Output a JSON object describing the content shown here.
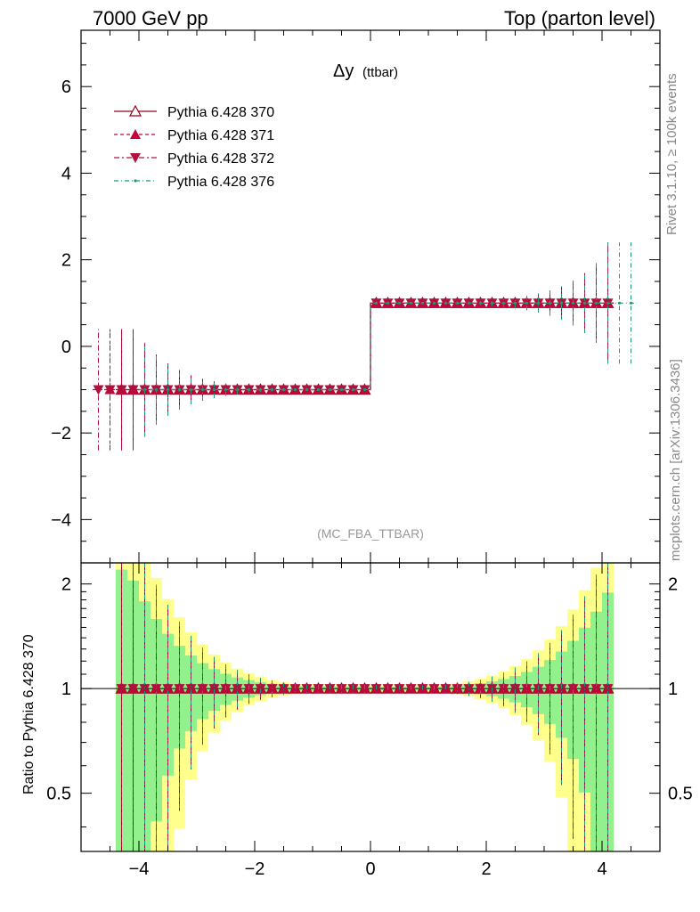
{
  "header": {
    "left": "7000 GeV pp",
    "right": "Top (parton level)"
  },
  "side_labels": {
    "rivet": "Rivet 3.1.10, ≥ 100k events",
    "mcplots": "mcplots.cern.ch [arXiv:1306.3436]"
  },
  "plot_title": {
    "main": "Δy",
    "sub": "(ttbar)"
  },
  "analysis_tag": "(MC_FBA_TTBAR)",
  "ratio_ylabel": "Ratio to Pythia 6.428 370",
  "legend": [
    {
      "label": "Pythia 6.428 370",
      "color": "#99001a",
      "marker": "triangle-up-open",
      "line": "solid"
    },
    {
      "label": "Pythia 6.428 371",
      "color": "#c8003c",
      "marker": "triangle-up",
      "line": "dashed"
    },
    {
      "label": "Pythia 6.428 372",
      "color": "#b0103c",
      "marker": "triangle-down",
      "line": "dashdot"
    },
    {
      "label": "Pythia 6.428 376",
      "color": "#1a9a78",
      "marker": "dot",
      "line": "dashdot"
    }
  ],
  "chart_data": {
    "type": "line",
    "xlim": [
      -5,
      5
    ],
    "ylim_main": [
      -5,
      7.3
    ],
    "ylim_ratio": [
      0.34,
      2.3
    ],
    "x_ticks": [
      "−4",
      "−2",
      "0",
      "2",
      "4"
    ],
    "x_tick_values": [
      -4,
      -2,
      0,
      2,
      4
    ],
    "y_ticks_main": [
      "−4",
      "−2",
      "0",
      "2",
      "4",
      "6"
    ],
    "y_tick_values_main": [
      -4,
      -2,
      0,
      2,
      4,
      6
    ],
    "y_ticks_ratio": [
      "0.5",
      "1",
      "2"
    ],
    "y_tick_values_ratio": [
      0.5,
      1,
      2
    ],
    "bins": {
      "start": -4.8,
      "width": 0.2,
      "count": 48
    },
    "series": [
      {
        "name": "Pythia 6.428 370",
        "x_range": [
          -4.4,
          4.2
        ],
        "values_rule": "-1 for x<0, +1 for x>0"
      },
      {
        "name": "Pythia 6.428 371",
        "x_range": [
          -4.6,
          4.2
        ],
        "values_rule": "-1 for x<0, +1 for x>0"
      },
      {
        "name": "Pythia 6.428 372",
        "x_range": [
          -4.8,
          4.2
        ],
        "values_rule": "-1 for x<0, +1 for x>0"
      },
      {
        "name": "Pythia 6.428 376",
        "x_range": [
          -4.0,
          4.6
        ],
        "values_rule": "-1 for x<0, +1 for x>0"
      }
    ],
    "reference_ratio": 1
  }
}
